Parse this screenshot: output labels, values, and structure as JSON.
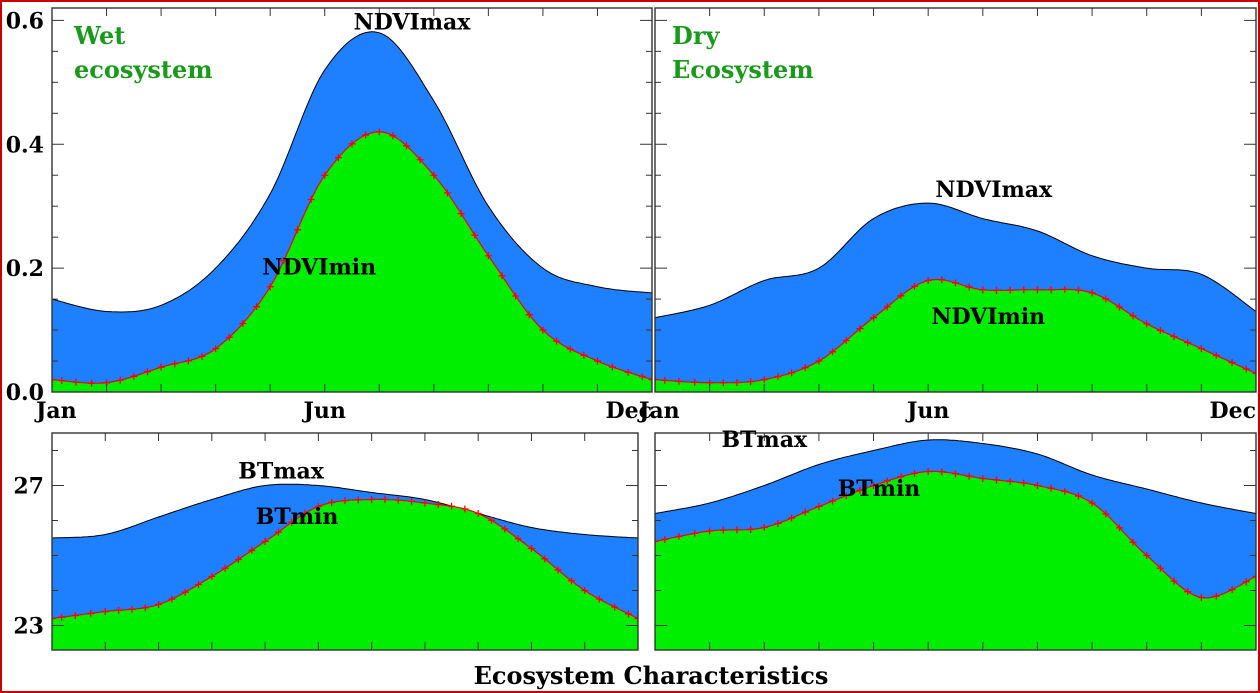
{
  "colors": {
    "upper_band": "#1e7fff",
    "lower_band": "#00ee00",
    "marker": "#ff0000",
    "frame": "#cc0000",
    "panel_title": "#1a9a1a"
  },
  "figure_title": "Ecosystem Characteristics",
  "chart_data": [
    {
      "type": "area",
      "id": "wet-ndvi",
      "title_lines": [
        "Wet",
        "ecosystem"
      ],
      "x": [
        1,
        2,
        3,
        4,
        5,
        6,
        7,
        8,
        9,
        10,
        11,
        12
      ],
      "xlim": [
        1,
        12
      ],
      "x_ticks": [
        {
          "value": 1,
          "label": "Jan"
        },
        {
          "value": 6,
          "label": "Jun"
        },
        {
          "value": 12,
          "label": "Dec"
        }
      ],
      "ylim": [
        0,
        0.62
      ],
      "y_ticks": [
        {
          "value": 0.0,
          "label": "0.0"
        },
        {
          "value": 0.2,
          "label": "0.2"
        },
        {
          "value": 0.4,
          "label": "0.4"
        },
        {
          "value": 0.6,
          "label": "0.6"
        }
      ],
      "series": [
        {
          "name": "NDVImax",
          "values": [
            0.15,
            0.13,
            0.14,
            0.2,
            0.32,
            0.52,
            0.58,
            0.47,
            0.3,
            0.2,
            0.17,
            0.16
          ]
        },
        {
          "name": "NDVImin",
          "values": [
            0.02,
            0.015,
            0.04,
            0.07,
            0.17,
            0.35,
            0.42,
            0.35,
            0.22,
            0.1,
            0.05,
            0.02
          ]
        }
      ],
      "labels": [
        {
          "text": "NDVImax",
          "x": 7.6,
          "y": 0.585
        },
        {
          "text": "NDVImin",
          "x": 5.9,
          "y": 0.19
        }
      ]
    },
    {
      "type": "area",
      "id": "dry-ndvi",
      "title_lines": [
        "Dry",
        "Ecosystem"
      ],
      "x": [
        1,
        2,
        3,
        4,
        5,
        6,
        7,
        8,
        9,
        10,
        11,
        12
      ],
      "xlim": [
        1,
        12
      ],
      "x_ticks": [
        {
          "value": 1,
          "label": "Jan"
        },
        {
          "value": 6,
          "label": "Jun"
        },
        {
          "value": 12,
          "label": "Dec"
        }
      ],
      "ylim": [
        0,
        0.62
      ],
      "y_ticks": [
        {
          "value": 0.0,
          "label": ""
        },
        {
          "value": 0.2,
          "label": ""
        },
        {
          "value": 0.4,
          "label": ""
        },
        {
          "value": 0.6,
          "label": ""
        }
      ],
      "series": [
        {
          "name": "NDVImax",
          "values": [
            0.12,
            0.14,
            0.18,
            0.2,
            0.28,
            0.305,
            0.28,
            0.26,
            0.22,
            0.2,
            0.19,
            0.13
          ]
        },
        {
          "name": "NDVImin",
          "values": [
            0.02,
            0.015,
            0.02,
            0.05,
            0.12,
            0.18,
            0.165,
            0.165,
            0.16,
            0.11,
            0.07,
            0.03
          ]
        }
      ],
      "labels": [
        {
          "text": "NDVImax",
          "x": 7.2,
          "y": 0.315
        },
        {
          "text": "NDVImin",
          "x": 7.1,
          "y": 0.11
        }
      ]
    },
    {
      "type": "area",
      "id": "wet-bt",
      "x": [
        1,
        2,
        3,
        4,
        5,
        6,
        7,
        8,
        9,
        10,
        11,
        12
      ],
      "xlim": [
        1,
        12
      ],
      "ylim": [
        22.3,
        28.5
      ],
      "y_ticks": [
        {
          "value": 23,
          "label": "23"
        },
        {
          "value": 27,
          "label": "27"
        }
      ],
      "series": [
        {
          "name": "BTmax",
          "values": [
            25.5,
            25.6,
            26.1,
            26.6,
            27.0,
            27.0,
            26.8,
            26.6,
            26.2,
            25.8,
            25.6,
            25.5
          ]
        },
        {
          "name": "BTmin",
          "values": [
            23.2,
            23.4,
            23.6,
            24.4,
            25.4,
            26.4,
            26.6,
            26.5,
            26.2,
            25.2,
            24.0,
            23.2
          ]
        }
      ],
      "labels": [
        {
          "text": "BTmax",
          "x": 5.3,
          "y": 27.2
        },
        {
          "text": "BTmin",
          "x": 5.6,
          "y": 25.9
        }
      ]
    },
    {
      "type": "area",
      "id": "dry-bt",
      "x": [
        1,
        2,
        3,
        4,
        5,
        6,
        7,
        8,
        9,
        10,
        11,
        12
      ],
      "xlim": [
        1,
        12
      ],
      "ylim": [
        22.3,
        28.5
      ],
      "y_ticks": [
        {
          "value": 23,
          "label": ""
        },
        {
          "value": 27,
          "label": ""
        }
      ],
      "series": [
        {
          "name": "BTmax",
          "values": [
            26.2,
            26.5,
            27.0,
            27.6,
            28.0,
            28.3,
            28.2,
            27.9,
            27.3,
            26.9,
            26.5,
            26.2
          ]
        },
        {
          "name": "BTmin",
          "values": [
            25.4,
            25.7,
            25.8,
            26.4,
            27.0,
            27.4,
            27.2,
            27.0,
            26.5,
            25.0,
            23.8,
            24.4
          ]
        }
      ],
      "labels": [
        {
          "text": "BTmax",
          "x": 3.0,
          "y": 28.1
        },
        {
          "text": "BTmin",
          "x": 5.1,
          "y": 26.7
        }
      ]
    }
  ]
}
